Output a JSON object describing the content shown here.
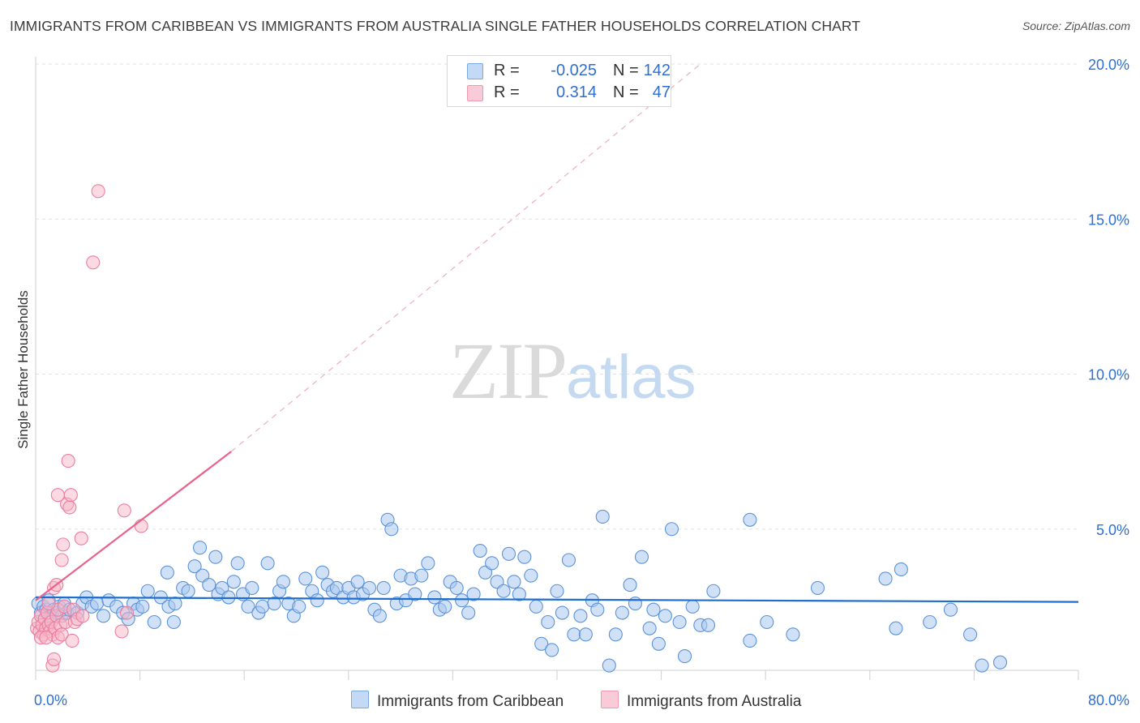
{
  "header": {
    "title": "IMMIGRANTS FROM CARIBBEAN VS IMMIGRANTS FROM AUSTRALIA SINGLE FATHER HOUSEHOLDS CORRELATION CHART",
    "source": "Source: ZipAtlas.com"
  },
  "watermark": {
    "zip": "ZIP",
    "atlas": "atlas"
  },
  "legend": {
    "rows": [
      {
        "r_label": "R =",
        "r_value": "-0.025",
        "n_label": "N =",
        "n_value": "142"
      },
      {
        "r_label": "R =",
        "r_value": "0.314",
        "n_label": "N =",
        "n_value": "47"
      }
    ]
  },
  "bottom_legend": {
    "caribbean": "Immigrants from Caribbean",
    "australia": "Immigrants from Australia"
  },
  "colors": {
    "caribbean_fill": "#a9c8f0",
    "caribbean_stroke": "#5b93d8",
    "caribbean_line": "#1f6dcc",
    "australia_fill": "#f7b6c8",
    "australia_stroke": "#ea7fa0",
    "australia_line": "#e8628a",
    "axis_label": "#2f6fd0",
    "grid": "#e2e2e2"
  },
  "chart_data": {
    "type": "scatter",
    "title": "IMMIGRANTS FROM CARIBBEAN VS IMMIGRANTS FROM AUSTRALIA SINGLE FATHER HOUSEHOLDS CORRELATION CHART",
    "xlabel": "",
    "ylabel": "Single Father Households",
    "xlim": [
      0,
      80
    ],
    "ylim": [
      0,
      20.8
    ],
    "x_ticks": [
      0,
      8,
      16,
      24,
      32,
      40,
      48,
      56,
      64,
      72,
      80
    ],
    "x_tick_labels": {
      "0": "0.0%",
      "80": "80.0%"
    },
    "y_ticks": [
      5,
      10,
      15,
      20
    ],
    "y_tick_labels": [
      "5.0%",
      "10.0%",
      "15.0%",
      "20.0%"
    ],
    "grid": true,
    "legend_position": "top-center",
    "series": [
      {
        "name": "Immigrants from Caribbean",
        "r": -0.025,
        "n": 142,
        "trend": {
          "x": [
            0,
            80
          ],
          "y": [
            2.8,
            2.65
          ],
          "style": "solid"
        },
        "points": [
          [
            0.2,
            2.6
          ],
          [
            0.4,
            2.3
          ],
          [
            0.6,
            2.5
          ],
          [
            0.8,
            2.4
          ],
          [
            1.0,
            2.7
          ],
          [
            1.2,
            2.2
          ],
          [
            1.4,
            2.4
          ],
          [
            1.6,
            2.3
          ],
          [
            1.8,
            2.5
          ],
          [
            2.0,
            2.2
          ],
          [
            2.2,
            2.6
          ],
          [
            2.4,
            2.3
          ],
          [
            2.6,
            2.4
          ],
          [
            3.2,
            2.3
          ],
          [
            3.6,
            2.6
          ],
          [
            3.9,
            2.8
          ],
          [
            4.3,
            2.5
          ],
          [
            4.7,
            2.6
          ],
          [
            5.2,
            2.2
          ],
          [
            5.6,
            2.7
          ],
          [
            6.2,
            2.5
          ],
          [
            6.7,
            2.3
          ],
          [
            7.1,
            2.1
          ],
          [
            7.5,
            2.6
          ],
          [
            7.8,
            2.4
          ],
          [
            8.2,
            2.5
          ],
          [
            8.6,
            3.0
          ],
          [
            9.1,
            2.0
          ],
          [
            9.6,
            2.8
          ],
          [
            10.1,
            3.6
          ],
          [
            10.2,
            2.5
          ],
          [
            10.6,
            2.0
          ],
          [
            10.7,
            2.6
          ],
          [
            11.3,
            3.1
          ],
          [
            11.7,
            3.0
          ],
          [
            12.2,
            3.8
          ],
          [
            12.6,
            4.4
          ],
          [
            12.8,
            3.5
          ],
          [
            13.3,
            3.2
          ],
          [
            13.8,
            4.1
          ],
          [
            14.0,
            2.9
          ],
          [
            14.3,
            3.1
          ],
          [
            14.8,
            2.8
          ],
          [
            15.2,
            3.3
          ],
          [
            15.5,
            3.9
          ],
          [
            15.9,
            2.9
          ],
          [
            16.3,
            2.5
          ],
          [
            16.6,
            3.1
          ],
          [
            17.1,
            2.3
          ],
          [
            17.4,
            2.5
          ],
          [
            17.8,
            3.9
          ],
          [
            18.3,
            2.6
          ],
          [
            18.7,
            3.0
          ],
          [
            19.0,
            3.3
          ],
          [
            19.4,
            2.6
          ],
          [
            19.8,
            2.2
          ],
          [
            20.2,
            2.5
          ],
          [
            20.7,
            3.4
          ],
          [
            21.2,
            3.0
          ],
          [
            21.6,
            2.7
          ],
          [
            22.0,
            3.6
          ],
          [
            22.4,
            3.2
          ],
          [
            22.8,
            3.0
          ],
          [
            23.1,
            3.1
          ],
          [
            23.6,
            2.8
          ],
          [
            24.0,
            3.1
          ],
          [
            24.4,
            2.8
          ],
          [
            24.7,
            3.3
          ],
          [
            25.1,
            2.9
          ],
          [
            25.6,
            3.1
          ],
          [
            26.0,
            2.4
          ],
          [
            26.4,
            2.2
          ],
          [
            26.7,
            3.1
          ],
          [
            27.0,
            5.3
          ],
          [
            27.3,
            5.0
          ],
          [
            27.7,
            2.6
          ],
          [
            28.0,
            3.5
          ],
          [
            28.4,
            2.7
          ],
          [
            28.8,
            3.4
          ],
          [
            29.1,
            2.9
          ],
          [
            29.6,
            3.5
          ],
          [
            30.1,
            3.9
          ],
          [
            30.6,
            2.8
          ],
          [
            31.0,
            2.4
          ],
          [
            31.4,
            2.5
          ],
          [
            31.8,
            3.3
          ],
          [
            32.3,
            3.1
          ],
          [
            32.7,
            2.7
          ],
          [
            33.2,
            2.3
          ],
          [
            33.6,
            2.9
          ],
          [
            34.1,
            4.3
          ],
          [
            34.5,
            3.6
          ],
          [
            35.0,
            3.9
          ],
          [
            35.4,
            3.3
          ],
          [
            35.9,
            3.0
          ],
          [
            36.3,
            4.2
          ],
          [
            36.7,
            3.3
          ],
          [
            37.1,
            2.9
          ],
          [
            37.5,
            4.1
          ],
          [
            38.0,
            3.5
          ],
          [
            38.4,
            2.5
          ],
          [
            38.8,
            1.3
          ],
          [
            39.3,
            2.0
          ],
          [
            39.6,
            1.1
          ],
          [
            40.0,
            3.0
          ],
          [
            40.4,
            2.3
          ],
          [
            40.9,
            4.0
          ],
          [
            41.3,
            1.6
          ],
          [
            41.8,
            2.2
          ],
          [
            42.2,
            1.6
          ],
          [
            42.7,
            2.7
          ],
          [
            43.1,
            2.4
          ],
          [
            43.5,
            5.4
          ],
          [
            44.0,
            0.6
          ],
          [
            44.5,
            1.6
          ],
          [
            45.0,
            2.3
          ],
          [
            45.6,
            3.2
          ],
          [
            46.0,
            2.6
          ],
          [
            46.5,
            4.1
          ],
          [
            47.1,
            1.8
          ],
          [
            47.4,
            2.4
          ],
          [
            47.8,
            1.3
          ],
          [
            48.3,
            2.2
          ],
          [
            48.8,
            5.0
          ],
          [
            49.4,
            2.0
          ],
          [
            49.8,
            0.9
          ],
          [
            50.4,
            2.5
          ],
          [
            51.0,
            1.9
          ],
          [
            51.6,
            1.9
          ],
          [
            52.0,
            3.0
          ],
          [
            54.8,
            1.4
          ],
          [
            54.8,
            5.3
          ],
          [
            56.1,
            2.0
          ],
          [
            58.1,
            1.6
          ],
          [
            60.0,
            3.1
          ],
          [
            65.2,
            3.4
          ],
          [
            66.0,
            1.8
          ],
          [
            66.4,
            3.7
          ],
          [
            68.6,
            2.0
          ],
          [
            70.2,
            2.4
          ],
          [
            71.7,
            1.6
          ],
          [
            72.6,
            0.6
          ],
          [
            74.0,
            0.7
          ]
        ]
      },
      {
        "name": "Immigrants from Australia",
        "r": 0.314,
        "n": 47,
        "trend": {
          "x": [
            0,
            15
          ],
          "y": [
            2.7,
            7.5
          ],
          "style": "solid",
          "extended_x": [
            15,
            51
          ],
          "extended_y": [
            7.5,
            20.0
          ],
          "extended_style": "dashed"
        },
        "points": [
          [
            0.1,
            1.8
          ],
          [
            0.2,
            2.0
          ],
          [
            0.3,
            1.7
          ],
          [
            0.4,
            2.2
          ],
          [
            0.5,
            1.9
          ],
          [
            0.6,
            1.6
          ],
          [
            0.7,
            2.1
          ],
          [
            0.8,
            1.8
          ],
          [
            0.9,
            2.3
          ],
          [
            1.0,
            1.9
          ],
          [
            1.1,
            1.7
          ],
          [
            1.2,
            2.0
          ],
          [
            1.3,
            1.6
          ],
          [
            1.4,
            3.1
          ],
          [
            1.5,
            1.8
          ],
          [
            1.6,
            2.2
          ],
          [
            1.7,
            1.5
          ],
          [
            1.3,
            0.6
          ],
          [
            1.4,
            0.8
          ],
          [
            1.7,
            2.4
          ],
          [
            1.6,
            3.2
          ],
          [
            1.7,
            6.1
          ],
          [
            1.9,
            1.9
          ],
          [
            2.0,
            1.6
          ],
          [
            2.0,
            4.0
          ],
          [
            2.1,
            4.5
          ],
          [
            2.2,
            2.5
          ],
          [
            2.3,
            2.0
          ],
          [
            2.4,
            5.8
          ],
          [
            2.5,
            7.2
          ],
          [
            2.6,
            5.7
          ],
          [
            2.7,
            6.1
          ],
          [
            2.8,
            1.4
          ],
          [
            2.9,
            2.4
          ],
          [
            3.0,
            2.0
          ],
          [
            3.2,
            2.1
          ],
          [
            3.5,
            4.7
          ],
          [
            3.6,
            2.2
          ],
          [
            4.4,
            13.6
          ],
          [
            4.8,
            15.9
          ],
          [
            6.6,
            1.7
          ],
          [
            6.8,
            5.6
          ],
          [
            7.0,
            2.3
          ],
          [
            8.1,
            5.1
          ],
          [
            0.4,
            1.5
          ],
          [
            0.8,
            1.5
          ],
          [
            1.0,
            2.6
          ]
        ]
      }
    ]
  }
}
